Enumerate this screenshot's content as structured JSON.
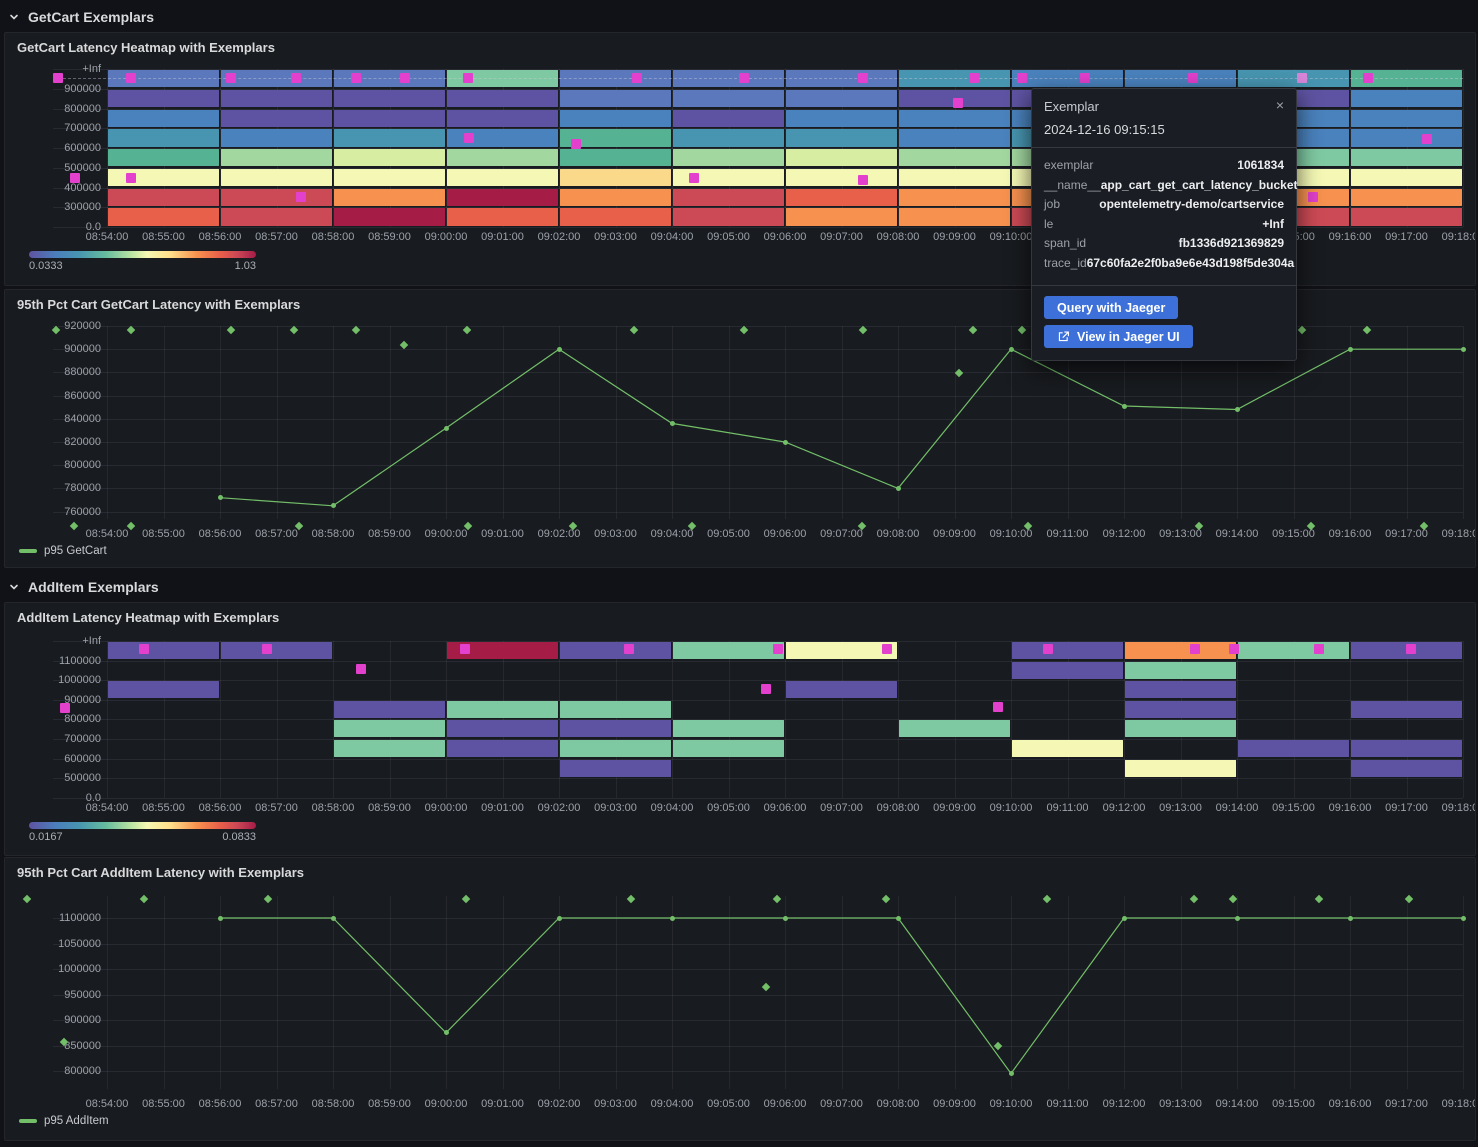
{
  "sections": [
    {
      "title": "GetCart Exemplars"
    },
    {
      "title": "AddItem Exemplars"
    }
  ],
  "x_axis_labels": [
    "08:54:00",
    "08:55:00",
    "08:56:00",
    "08:57:00",
    "08:58:00",
    "08:59:00",
    "09:00:00",
    "09:01:00",
    "09:02:00",
    "09:03:00",
    "09:04:00",
    "09:05:00",
    "09:06:00",
    "09:07:00",
    "09:08:00",
    "09:09:00",
    "09:10:00",
    "09:11:00",
    "09:12:00",
    "09:13:00",
    "09:14:00",
    "09:15:00",
    "09:16:00",
    "09:17:00",
    "09:18:00"
  ],
  "colors": {
    "accent_blue": "#3d71d9",
    "exemplar_magenta": "#e240cd",
    "exemplar_light": "#d685d8",
    "series_green": "#73bf69"
  },
  "heatmap_palette": {
    "P": "#5e53a2",
    "SB": "#5b78bd",
    "B": "#4a82bd",
    "TB": "#4795b0",
    "T": "#55b293",
    "G": "#7fc9a2",
    "LG": "#a2d7a0",
    "PG": "#d7eea2",
    "PY": "#f4f8b4",
    "PE": "#fbd98b",
    "O": "#f6914f",
    "RO": "#e8604a",
    "R": "#cc4a55",
    "C": "#a51c47"
  },
  "tooltip": {
    "title": "Exemplar",
    "close_label": "×",
    "timestamp": "2024-12-16 09:15:15",
    "fields": [
      {
        "key": "exemplar",
        "value": "1061834"
      },
      {
        "key": "__name__",
        "value": "app_cart_get_cart_latency_bucket"
      },
      {
        "key": "job",
        "value": "opentelemetry-demo/cartservice"
      },
      {
        "key": "le",
        "value": "+Inf"
      },
      {
        "key": "span_id",
        "value": "fb1336d921369829"
      },
      {
        "key": "trace_id",
        "value": "67c60fa2e2f0ba9e6e43d198f5de304a"
      }
    ],
    "buttons": [
      {
        "label": "Query with Jaeger",
        "icon": null
      },
      {
        "label": "View in Jaeger UI",
        "icon": "external-link-icon"
      }
    ]
  },
  "chart_data": [
    {
      "type": "heatmap",
      "title": "GetCart Latency Heatmap with Exemplars",
      "y_labels": [
        "+Inf",
        "900000",
        "800000",
        "700000",
        "600000",
        "500000",
        "400000",
        "300000",
        "0.0"
      ],
      "bucket_minutes": 2,
      "grid": [
        [
          "SB",
          "P",
          "B",
          "TB",
          "T",
          "PY",
          "R",
          "RO"
        ],
        [
          "SB",
          "P",
          "P",
          "B",
          "LG",
          "PY",
          "R",
          "R"
        ],
        [
          "SB",
          "P",
          "P",
          "TB",
          "PG",
          "PY",
          "O",
          "C"
        ],
        [
          "G",
          "P",
          "P",
          "B",
          "LG",
          "PY",
          "C",
          "RO"
        ],
        [
          "SB",
          "SB",
          "B",
          "T",
          "T",
          "PE",
          "O",
          "RO"
        ],
        [
          "SB",
          "SB",
          "P",
          "TB",
          "LG",
          "PY",
          "R",
          "R"
        ],
        [
          "SB",
          "SB",
          "B",
          "TB",
          "PG",
          "PY",
          "RO",
          "O"
        ],
        [
          "TB",
          "P",
          "B",
          "B",
          "LG",
          "PY",
          "O",
          "O"
        ],
        [
          "B",
          "P",
          "B",
          "TB",
          "LG",
          "PY",
          "O",
          "R"
        ],
        [
          "B",
          "SB",
          "B",
          "TB",
          "G",
          "PY",
          "O",
          "R"
        ],
        [
          "TB",
          "P",
          "B",
          "B",
          "G",
          "PY",
          "O",
          "R"
        ],
        [
          "T",
          "B",
          "B",
          "B",
          "G",
          "PY",
          "O",
          "R"
        ]
      ],
      "dashed_exemplar_line": true,
      "exemplars": [
        [
          53,
          45
        ],
        [
          126,
          45
        ],
        [
          226,
          45
        ],
        [
          291,
          45
        ],
        [
          351,
          45
        ],
        [
          400,
          45
        ],
        [
          463,
          45
        ],
        [
          632,
          45
        ],
        [
          739,
          45
        ],
        [
          858,
          45
        ],
        [
          969,
          45
        ],
        [
          1017,
          45
        ],
        [
          1080,
          45
        ],
        [
          1188,
          45
        ],
        [
          1363,
          45
        ],
        [
          70,
          145
        ],
        [
          126,
          145
        ],
        [
          296,
          164
        ],
        [
          464,
          105
        ],
        [
          571,
          111
        ],
        [
          689,
          145
        ],
        [
          858,
          147
        ],
        [
          953,
          70
        ],
        [
          1422,
          106
        ],
        [
          1308,
          164
        ]
      ],
      "exemplars_light": [
        [
          1297,
          45
        ]
      ],
      "scale": {
        "min": "0.0333",
        "max": "1.03"
      }
    },
    {
      "type": "line",
      "title": "95th Pct Cart GetCart Latency with Exemplars",
      "legend": "p95 GetCart",
      "y_ticks": [
        "920000",
        "900000",
        "880000",
        "860000",
        "840000",
        "820000",
        "800000",
        "780000",
        "760000"
      ],
      "y_axis": {
        "top": 920000,
        "step": 20000
      },
      "x_offsets_min": [
        2,
        4,
        6,
        8,
        10,
        12,
        14,
        16,
        18,
        20,
        22,
        24
      ],
      "values": [
        772000,
        765000,
        832000,
        900000,
        836000,
        820000,
        780000,
        900000,
        851000,
        848000,
        900000,
        900000
      ],
      "exemplars": [
        [
          51,
          40
        ],
        [
          126,
          40
        ],
        [
          226,
          40
        ],
        [
          289,
          40
        ],
        [
          351,
          40
        ],
        [
          462,
          40
        ],
        [
          629,
          40
        ],
        [
          739,
          40
        ],
        [
          858,
          40
        ],
        [
          968,
          40
        ],
        [
          1017,
          40
        ],
        [
          1297,
          40
        ],
        [
          1362,
          40
        ],
        [
          399,
          55
        ],
        [
          954,
          83
        ],
        [
          69,
          236
        ],
        [
          126,
          236
        ],
        [
          294,
          236
        ],
        [
          463,
          236
        ],
        [
          568,
          236
        ],
        [
          687,
          236
        ],
        [
          857,
          236
        ],
        [
          1023,
          236
        ],
        [
          1194,
          236
        ],
        [
          1306,
          236
        ],
        [
          1419,
          236
        ]
      ]
    },
    {
      "type": "heatmap",
      "title": "AddItem Latency Heatmap with Exemplars",
      "y_labels": [
        "+Inf",
        "1100000",
        "1000000",
        "900000",
        "800000",
        "700000",
        "600000",
        "500000",
        "0.0"
      ],
      "bucket_minutes": 2,
      "grid": [
        [
          "P",
          null,
          "P",
          null,
          null,
          null,
          null,
          null
        ],
        [
          "P",
          null,
          null,
          null,
          null,
          null,
          null,
          null
        ],
        [
          null,
          null,
          null,
          "P",
          "G",
          "G",
          null,
          null
        ],
        [
          "C",
          null,
          null,
          "G",
          "P",
          "P",
          null,
          null
        ],
        [
          "P",
          null,
          null,
          "G",
          "P",
          "G",
          "P",
          null
        ],
        [
          "G",
          null,
          null,
          null,
          "G",
          "G",
          null,
          null
        ],
        [
          "PY",
          null,
          "P",
          null,
          null,
          null,
          null,
          null
        ],
        [
          null,
          null,
          null,
          null,
          "G",
          null,
          null,
          null
        ],
        [
          "P",
          "P",
          null,
          null,
          null,
          "PY",
          null,
          null
        ],
        [
          "O",
          "G",
          "P",
          "P",
          "G",
          null,
          "PY",
          null
        ],
        [
          "G",
          null,
          null,
          null,
          null,
          "P",
          null,
          null
        ],
        [
          "P",
          null,
          null,
          "P",
          null,
          "P",
          "P",
          null
        ]
      ],
      "dashed_exemplar_line": false,
      "exemplars": [
        [
          139,
          46
        ],
        [
          262,
          46
        ],
        [
          460,
          46
        ],
        [
          624,
          46
        ],
        [
          773,
          46
        ],
        [
          882,
          46
        ],
        [
          1043,
          46
        ],
        [
          1190,
          46
        ],
        [
          1229,
          46
        ],
        [
          1314,
          46
        ],
        [
          1406,
          46
        ],
        [
          60,
          105
        ],
        [
          356,
          66
        ],
        [
          761,
          86
        ],
        [
          993,
          104
        ]
      ],
      "exemplars_light": [],
      "scale": {
        "min": "0.0167",
        "max": "0.0833"
      }
    },
    {
      "type": "line",
      "title": "95th Pct Cart AddItem Latency with Exemplars",
      "legend": "p95 AddItem",
      "y_ticks": [
        "1100000",
        "1050000",
        "1000000",
        "950000",
        "900000",
        "850000",
        "800000"
      ],
      "y_axis": {
        "top": 1100000,
        "step": 50000
      },
      "x_offsets_min": [
        2,
        4,
        6,
        8,
        10,
        12,
        14,
        16,
        18,
        20,
        22,
        24
      ],
      "values": [
        1100000,
        1100000,
        875000,
        1100000,
        1100000,
        1100000,
        1100000,
        795000,
        1100000,
        1100000,
        1100000,
        1100000
      ],
      "exemplars": [
        [
          22,
          41
        ],
        [
          139,
          41
        ],
        [
          263,
          41
        ],
        [
          461,
          41
        ],
        [
          626,
          41
        ],
        [
          772,
          41
        ],
        [
          881,
          41
        ],
        [
          1042,
          41
        ],
        [
          1189,
          41
        ],
        [
          1228,
          41
        ],
        [
          1314,
          41
        ],
        [
          1404,
          41
        ],
        [
          761,
          129
        ],
        [
          993,
          188
        ],
        [
          59,
          184
        ]
      ]
    }
  ]
}
